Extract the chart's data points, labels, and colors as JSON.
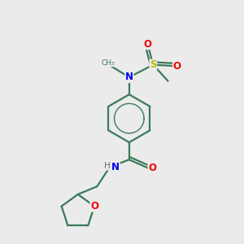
{
  "background_color": "#ebebeb",
  "bond_color": "#3a7a5a",
  "atom_colors": {
    "N": "#0000ee",
    "O": "#ee0000",
    "S": "#bbbb00",
    "H": "#666666"
  },
  "figsize": [
    3.0,
    3.0
  ],
  "dpi": 100,
  "lw": 1.6
}
